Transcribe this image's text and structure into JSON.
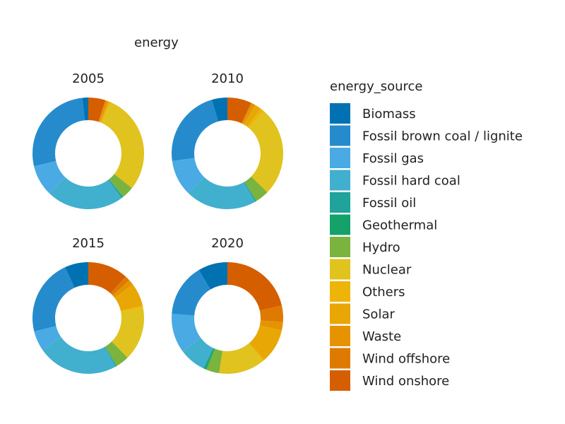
{
  "chart_data": {
    "type": "donut-facets",
    "title": "energy",
    "legend_title": "energy_source",
    "categories": [
      "Biomass",
      "Fossil brown coal / lignite",
      "Fossil gas",
      "Fossil hard coal",
      "Fossil oil",
      "Geothermal",
      "Hydro",
      "Nuclear",
      "Others",
      "Solar",
      "Waste",
      "Wind offshore",
      "Wind onshore"
    ],
    "colors": {
      "Biomass": "#0072B2",
      "Fossil brown coal / lignite": "#268BCC",
      "Fossil gas": "#4AAAE3",
      "Fossil hard coal": "#41AFCE",
      "Fossil oil": "#1FA39A",
      "Geothermal": "#14A16A",
      "Hydro": "#7BB33F",
      "Nuclear": "#E0C31E",
      "Others": "#EEB509",
      "Solar": "#E8A704",
      "Waste": "#E59300",
      "Wind offshore": "#DE7A00",
      "Wind onshore": "#D55E00"
    },
    "facets": [
      {
        "label": "2005",
        "values": {
          "Wind onshore": 5.0,
          "Wind offshore": 0.1,
          "Waste": 0.7,
          "Solar": 0.4,
          "Others": 0.5,
          "Nuclear": 29.0,
          "Hydro": 3.5,
          "Geothermal": 0.1,
          "Fossil oil": 0.5,
          "Fossil hard coal": 22.5,
          "Fossil gas": 9.0,
          "Fossil brown coal / lignite": 27.0,
          "Biomass": 1.7
        }
      },
      {
        "label": "2010",
        "values": {
          "Wind onshore": 7.0,
          "Wind offshore": 0.3,
          "Waste": 1.0,
          "Solar": 2.0,
          "Others": 1.0,
          "Nuclear": 26.0,
          "Hydro": 4.0,
          "Geothermal": 0.1,
          "Fossil oil": 0.4,
          "Fossil hard coal": 20.5,
          "Fossil gas": 10.5,
          "Fossil brown coal / lignite": 22.7,
          "Biomass": 4.5
        }
      },
      {
        "label": "2015",
        "values": {
          "Wind onshore": 12.0,
          "Wind offshore": 1.5,
          "Waste": 1.5,
          "Solar": 7.0,
          "Others": 0.5,
          "Nuclear": 16.0,
          "Hydro": 4.0,
          "Geothermal": 0.1,
          "Fossil oil": 0.3,
          "Fossil hard coal": 24.0,
          "Fossil gas": 6.0,
          "Fossil brown coal / lignite": 22.6,
          "Biomass": 7.0
        }
      },
      {
        "label": "2020",
        "values": {
          "Wind onshore": 22.5,
          "Wind offshore": 5.0,
          "Waste": 2.5,
          "Solar": 10.5,
          "Others": 0.5,
          "Nuclear": 14.0,
          "Hydro": 4.0,
          "Geothermal": 0.5,
          "Fossil oil": 0.5,
          "Fossil hard coal": 8.0,
          "Fossil gas": 12.0,
          "Fossil brown coal / lignite": 16.0,
          "Biomass": 9.0
        }
      }
    ],
    "slice_order": [
      "Wind onshore",
      "Wind offshore",
      "Waste",
      "Solar",
      "Others",
      "Nuclear",
      "Hydro",
      "Geothermal",
      "Fossil oil",
      "Fossil hard coal",
      "Fossil gas",
      "Fossil brown coal / lignite",
      "Biomass"
    ]
  }
}
